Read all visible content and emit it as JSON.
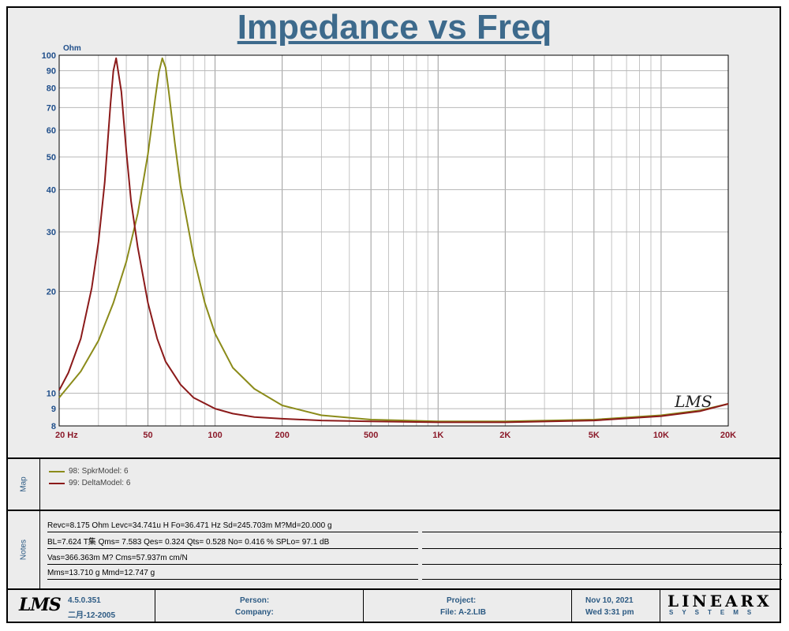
{
  "title": "Impedance vs Freq",
  "chart_data": {
    "type": "line",
    "title": "Impedance vs Freq",
    "ylabel": "Ohm",
    "xlabel": "",
    "x_scale": "log",
    "y_scale": "log",
    "xlim": [
      20,
      20000
    ],
    "ylim": [
      8,
      100
    ],
    "grid": true,
    "x_ticks": [
      {
        "value": 20,
        "label": "20  Hz"
      },
      {
        "value": 50,
        "label": "50"
      },
      {
        "value": 100,
        "label": "100"
      },
      {
        "value": 200,
        "label": "200"
      },
      {
        "value": 500,
        "label": "500"
      },
      {
        "value": 1000,
        "label": "1K"
      },
      {
        "value": 2000,
        "label": "2K"
      },
      {
        "value": 5000,
        "label": "5K"
      },
      {
        "value": 10000,
        "label": "10K"
      },
      {
        "value": 20000,
        "label": "20K"
      }
    ],
    "y_ticks": [
      {
        "value": 8,
        "label": "8"
      },
      {
        "value": 9,
        "label": "9"
      },
      {
        "value": 10,
        "label": "10"
      },
      {
        "value": 20,
        "label": "20"
      },
      {
        "value": 30,
        "label": "30"
      },
      {
        "value": 40,
        "label": "40"
      },
      {
        "value": 50,
        "label": "50"
      },
      {
        "value": 60,
        "label": "60"
      },
      {
        "value": 70,
        "label": "70"
      },
      {
        "value": 80,
        "label": "80"
      },
      {
        "value": 90,
        "label": "90"
      },
      {
        "value": 100,
        "label": "100"
      }
    ],
    "series": [
      {
        "name": "98: SpkrModel: 6",
        "color": "#8b8b1a",
        "x": [
          20,
          25,
          30,
          35,
          40,
          45,
          50,
          54,
          56,
          58,
          60,
          62,
          66,
          70,
          80,
          90,
          100,
          120,
          150,
          200,
          300,
          500,
          1000,
          2000,
          5000,
          10000,
          15000,
          20000
        ],
        "y": [
          9.7,
          11.6,
          14.3,
          18.5,
          24.5,
          34,
          51,
          75,
          89,
          98,
          92,
          78,
          55,
          41,
          25.5,
          18.5,
          15,
          11.9,
          10.3,
          9.2,
          8.6,
          8.35,
          8.25,
          8.25,
          8.35,
          8.6,
          8.9,
          9.3
        ]
      },
      {
        "name": "99: DeltaModel: 6",
        "color": "#8b1a1a",
        "x": [
          20,
          22,
          25,
          28,
          30,
          32,
          34,
          35,
          36,
          38,
          40,
          42,
          45,
          50,
          55,
          60,
          70,
          80,
          100,
          120,
          150,
          200,
          300,
          500,
          1000,
          2000,
          5000,
          10000,
          15000,
          20000
        ],
        "y": [
          10.2,
          11.5,
          14.5,
          20.5,
          28,
          42,
          72,
          90,
          98,
          78,
          52,
          37,
          27,
          18.5,
          14.5,
          12.4,
          10.6,
          9.7,
          9.0,
          8.7,
          8.5,
          8.4,
          8.3,
          8.25,
          8.2,
          8.2,
          8.3,
          8.55,
          8.85,
          9.3
        ]
      }
    ]
  },
  "map": {
    "label": "Map",
    "entries": [
      {
        "text": "98: SpkrModel: 6",
        "color": "#8b8b1a"
      },
      {
        "text": "99: DeltaModel: 6",
        "color": "#8b1a1a"
      }
    ]
  },
  "notes": {
    "label": "Notes",
    "lines": [
      "Revc=8.175 Ohm  Levc=34.741u H  Fo=36.471 Hz  Sd=245.703m M?Md=20.000 g",
      "BL=7.624 T集  Qms= 7.583  Qes= 0.324  Qts= 0.528  No= 0.416 %  SPLo= 97.1 dB",
      "Vas=366.363m M? Cms=57.937m cm/N",
      "Mms=13.710 g  Mmd=12.747 g"
    ]
  },
  "footer": {
    "logo": "LMS",
    "version": "4.5.0.351",
    "date_build": "二月-12-2005",
    "person_label": "Person:",
    "company_label": "Company:",
    "project_label": "Project:",
    "file_label": "File: A-2.LIB",
    "date": "Nov 10, 2021",
    "time": "Wed  3:31 pm",
    "brand_top": "LINEARX",
    "brand_bottom": "SYSTEMS"
  },
  "watermark": "LMS"
}
